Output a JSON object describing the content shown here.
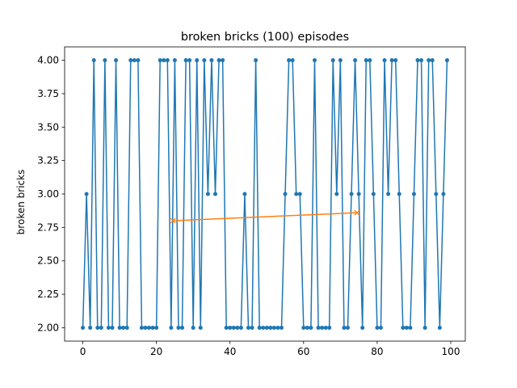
{
  "chart_data": {
    "type": "line",
    "title": "broken bricks (100) episodes",
    "xlabel": "",
    "ylabel": "broken bricks",
    "xlim": [
      -4.95,
      103.95
    ],
    "ylim": [
      1.9,
      4.1
    ],
    "xticks": [
      0,
      20,
      40,
      60,
      80,
      100
    ],
    "yticks": [
      2.0,
      2.25,
      2.5,
      2.75,
      3.0,
      3.25,
      3.5,
      3.75,
      4.0
    ],
    "grid": false,
    "series": [
      {
        "color": "#1f77b4",
        "marker": "circle",
        "x": [
          0,
          1,
          2,
          3,
          4,
          5,
          6,
          7,
          8,
          9,
          10,
          11,
          12,
          13,
          14,
          15,
          16,
          17,
          18,
          19,
          20,
          21,
          22,
          23,
          24,
          25,
          26,
          27,
          28,
          29,
          30,
          31,
          32,
          33,
          34,
          35,
          36,
          37,
          38,
          39,
          40,
          41,
          42,
          43,
          44,
          45,
          46,
          47,
          48,
          49,
          50,
          51,
          52,
          53,
          54,
          55,
          56,
          57,
          58,
          59,
          60,
          61,
          62,
          63,
          64,
          65,
          66,
          67,
          68,
          69,
          70,
          71,
          72,
          73,
          74,
          75,
          76,
          77,
          78,
          79,
          80,
          81,
          82,
          83,
          84,
          85,
          86,
          87,
          88,
          89,
          90,
          91,
          92,
          93,
          94,
          95,
          96,
          97,
          98,
          99
        ],
        "values": [
          2,
          3,
          2,
          4,
          2,
          2,
          4,
          2,
          2,
          4,
          2,
          2,
          2,
          4,
          4,
          4,
          2,
          2,
          2,
          2,
          2,
          4,
          4,
          4,
          2,
          4,
          2,
          2,
          4,
          4,
          2,
          4,
          2,
          4,
          3,
          4,
          3,
          4,
          4,
          2,
          2,
          2,
          2,
          2,
          3,
          2,
          2,
          4,
          2,
          2,
          2,
          2,
          2,
          2,
          2,
          3,
          4,
          4,
          3,
          3,
          2,
          2,
          2,
          4,
          2,
          2,
          2,
          2,
          4,
          3,
          4,
          2,
          2,
          3,
          4,
          3,
          2,
          4,
          4,
          3,
          2,
          2,
          4,
          3,
          4,
          4,
          3,
          2,
          2,
          2,
          3,
          4,
          4,
          2,
          4,
          4,
          3,
          2,
          3,
          4
        ]
      },
      {
        "color": "#ff7f0e",
        "marker": "x",
        "x": [
          24.5,
          74.5
        ],
        "values": [
          2.8,
          2.86
        ]
      }
    ]
  }
}
